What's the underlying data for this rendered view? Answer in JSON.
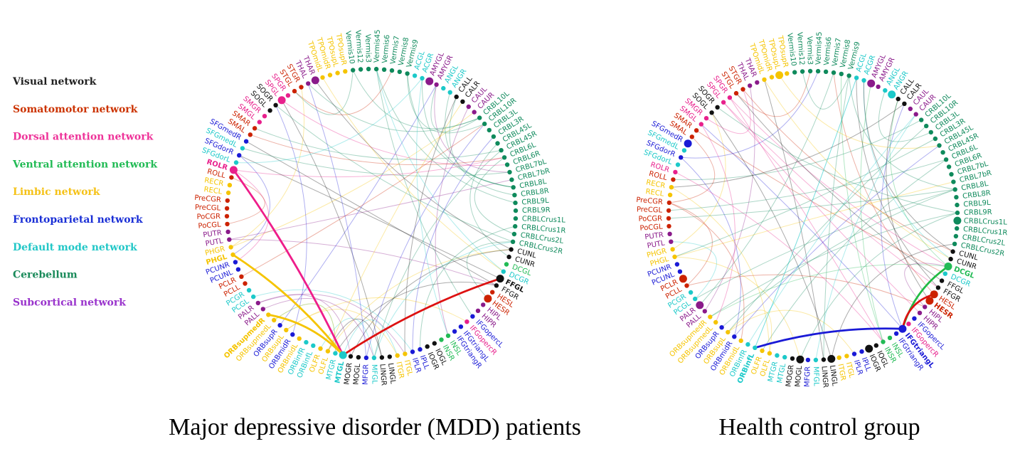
{
  "legend": [
    {
      "label": "Visual network",
      "color": "#222222"
    },
    {
      "label": "Somatomotor network",
      "color": "#cc3300"
    },
    {
      "label": "Dorsal attention network",
      "color": "#ee3399"
    },
    {
      "label": "Ventral attention network",
      "color": "#22bb55"
    },
    {
      "label": "Limbic network",
      "color": "#f5c218"
    },
    {
      "label": "Frontoparietal network",
      "color": "#1a2fd6"
    },
    {
      "label": "Default mode network",
      "color": "#22c7c7"
    },
    {
      "label": "Cerebellum",
      "color": "#1a8a5a"
    },
    {
      "label": "Subcortical network",
      "color": "#9933cc"
    }
  ],
  "network_colors": {
    "VIS": "#111111",
    "SMN": "#cc2200",
    "DAN": "#e8208c",
    "VAN": "#22bb55",
    "LIM": "#f5c400",
    "FPN": "#1a1ad6",
    "DMN": "#1cc9c9",
    "CER": "#0f8a5c",
    "SUB": "#8a1a8a"
  },
  "regions": [
    {
      "label": "ACGR",
      "net": "DMN"
    },
    {
      "label": "AMYGL",
      "net": "SUB"
    },
    {
      "label": "AMYGR",
      "net": "SUB"
    },
    {
      "label": "ANGL",
      "net": "DMN"
    },
    {
      "label": "ANGR",
      "net": "DMN"
    },
    {
      "label": "CALL",
      "net": "VIS"
    },
    {
      "label": "CALR",
      "net": "VIS"
    },
    {
      "label": "CAUL",
      "net": "SUB"
    },
    {
      "label": "CAUR",
      "net": "SUB"
    },
    {
      "label": "CRBL10L",
      "net": "CER"
    },
    {
      "label": "CRBL10R",
      "net": "CER"
    },
    {
      "label": "CRBL3L",
      "net": "CER"
    },
    {
      "label": "CRBL3R",
      "net": "CER"
    },
    {
      "label": "CRBL45L",
      "net": "CER"
    },
    {
      "label": "CRBL45R",
      "net": "CER"
    },
    {
      "label": "CRBL6L",
      "net": "CER"
    },
    {
      "label": "CRBL6R",
      "net": "CER"
    },
    {
      "label": "CRBL7bL",
      "net": "CER"
    },
    {
      "label": "CRBL7bR",
      "net": "CER"
    },
    {
      "label": "CRBL8L",
      "net": "CER"
    },
    {
      "label": "CRBL8R",
      "net": "CER"
    },
    {
      "label": "CRBL9L",
      "net": "CER"
    },
    {
      "label": "CRBL9R",
      "net": "CER"
    },
    {
      "label": "CRBLCrus1L",
      "net": "CER"
    },
    {
      "label": "CRBLCrus1R",
      "net": "CER"
    },
    {
      "label": "CRBLCrus2L",
      "net": "CER"
    },
    {
      "label": "CRBLCrus2R",
      "net": "CER"
    },
    {
      "label": "CUNL",
      "net": "VIS"
    },
    {
      "label": "CUNR",
      "net": "VIS"
    },
    {
      "label": "DCGL",
      "net": "VAN"
    },
    {
      "label": "DCGR",
      "net": "DMN"
    },
    {
      "label": "FFGL",
      "net": "VIS"
    },
    {
      "label": "FFGR",
      "net": "VIS"
    },
    {
      "label": "HESL",
      "net": "SMN"
    },
    {
      "label": "HESR",
      "net": "SMN"
    },
    {
      "label": "HIPL",
      "net": "SUB"
    },
    {
      "label": "HIPR",
      "net": "SUB"
    },
    {
      "label": "IFGopercL",
      "net": "FPN"
    },
    {
      "label": "IFGopercR",
      "net": "DAN"
    },
    {
      "label": "IFGtriangL",
      "net": "FPN"
    },
    {
      "label": "IFGtriangR",
      "net": "FPN"
    },
    {
      "label": "INSL",
      "net": "VAN"
    },
    {
      "label": "INSR",
      "net": "VAN"
    },
    {
      "label": "IOGL",
      "net": "VIS"
    },
    {
      "label": "IOGR",
      "net": "VIS"
    },
    {
      "label": "IPLL",
      "net": "FPN"
    },
    {
      "label": "IPLR",
      "net": "FPN"
    },
    {
      "label": "ITGL",
      "net": "LIM"
    },
    {
      "label": "ITGR",
      "net": "LIM"
    },
    {
      "label": "LINGL",
      "net": "VIS"
    },
    {
      "label": "LINGR",
      "net": "VIS"
    },
    {
      "label": "MFGL",
      "net": "DMN"
    },
    {
      "label": "MFGR",
      "net": "FPN"
    },
    {
      "label": "MOGL",
      "net": "VIS"
    },
    {
      "label": "MOGR",
      "net": "VIS"
    },
    {
      "label": "MTGL",
      "net": "DMN"
    },
    {
      "label": "MTGR",
      "net": "DMN"
    },
    {
      "label": "OLFL",
      "net": "LIM"
    },
    {
      "label": "OLFR",
      "net": "LIM"
    },
    {
      "label": "ORBinfL",
      "net": "DMN"
    },
    {
      "label": "ORBinfR",
      "net": "DMN"
    },
    {
      "label": "ORBmidL",
      "net": "LIM"
    },
    {
      "label": "ORBmidR",
      "net": "FPN"
    },
    {
      "label": "ORBsupL",
      "net": "LIM"
    },
    {
      "label": "ORBsupR",
      "net": "FPN"
    },
    {
      "label": "ORBsupmedL",
      "net": "LIM"
    },
    {
      "label": "ORBsupmedR",
      "net": "LIM"
    },
    {
      "label": "PALL",
      "net": "SUB"
    },
    {
      "label": "PALR",
      "net": "SUB"
    },
    {
      "label": "PCGL",
      "net": "DMN"
    },
    {
      "label": "PCGR",
      "net": "DMN"
    },
    {
      "label": "PCLL",
      "net": "SMN"
    },
    {
      "label": "PCLR",
      "net": "SMN"
    },
    {
      "label": "PCUNL",
      "net": "FPN"
    },
    {
      "label": "PCUNR",
      "net": "FPN"
    },
    {
      "label": "PHGL",
      "net": "LIM"
    },
    {
      "label": "PHGR",
      "net": "LIM"
    },
    {
      "label": "PUTL",
      "net": "SUB"
    },
    {
      "label": "PUTR",
      "net": "SUB"
    },
    {
      "label": "PoCGL",
      "net": "SMN"
    },
    {
      "label": "PoCGR",
      "net": "SMN"
    },
    {
      "label": "PreCGL",
      "net": "SMN"
    },
    {
      "label": "PreCGR",
      "net": "SMN"
    },
    {
      "label": "RECL",
      "net": "LIM"
    },
    {
      "label": "RECR",
      "net": "LIM"
    },
    {
      "label": "ROLL",
      "net": "SMN"
    },
    {
      "label": "ROLR",
      "net": "DAN"
    },
    {
      "label": "SFGdorL",
      "net": "DMN"
    },
    {
      "label": "SFGdorR",
      "net": "FPN"
    },
    {
      "label": "SFGmedL",
      "net": "DMN"
    },
    {
      "label": "SFGmedR",
      "net": "FPN"
    },
    {
      "label": "SMAL",
      "net": "SMN"
    },
    {
      "label": "SMAR",
      "net": "SMN"
    },
    {
      "label": "SMGL",
      "net": "DAN"
    },
    {
      "label": "SMGR",
      "net": "DAN"
    },
    {
      "label": "SOGL",
      "net": "VIS"
    },
    {
      "label": "SOGR",
      "net": "VIS"
    },
    {
      "label": "SPGL",
      "net": "DAN"
    },
    {
      "label": "SPGR",
      "net": "DAN"
    },
    {
      "label": "STGL",
      "net": "SMN"
    },
    {
      "label": "STGR",
      "net": "SMN"
    },
    {
      "label": "THAL",
      "net": "SUB"
    },
    {
      "label": "THAR",
      "net": "SUB"
    },
    {
      "label": "TPOmidL",
      "net": "LIM"
    },
    {
      "label": "TPOmidR",
      "net": "LIM"
    },
    {
      "label": "TPOsupL",
      "net": "LIM"
    },
    {
      "label": "TPOsupR",
      "net": "LIM"
    },
    {
      "label": "Vermis10",
      "net": "CER"
    },
    {
      "label": "Vermis12",
      "net": "CER"
    },
    {
      "label": "Vermis3",
      "net": "CER"
    },
    {
      "label": "Vermis45",
      "net": "CER"
    },
    {
      "label": "Vermis6",
      "net": "CER"
    },
    {
      "label": "Vermis7",
      "net": "CER"
    },
    {
      "label": "Vermis8",
      "net": "CER"
    },
    {
      "label": "Vermis9",
      "net": "CER"
    },
    {
      "label": "ACGL",
      "net": "DMN"
    }
  ],
  "panels": [
    {
      "title": "Major depressive disorder (MDD) patients",
      "highlight": [
        "ROLR",
        "FFGL",
        "MTGL",
        "ORBsupmedR",
        "PHGL"
      ],
      "big_nodes": [
        "AMYGL",
        "ROLR",
        "FFGL",
        "HESR",
        "MTGL",
        "THAR",
        "SPGL"
      ],
      "strong_edges": [
        {
          "from": "ROLR",
          "to": "MTGL",
          "color": "#ee1d8a"
        },
        {
          "from": "FFGL",
          "to": "MTGL",
          "color": "#dd1111"
        },
        {
          "from": "PHGL",
          "to": "MTGL",
          "color": "#f5c400"
        },
        {
          "from": "ORBsupmedR",
          "to": "MTGL",
          "color": "#f5c400"
        }
      ]
    },
    {
      "title": "Health control group",
      "highlight": [
        "DCGL",
        "HESR",
        "IFGtriangL",
        "ORBinfL"
      ],
      "big_nodes": [
        "DCGL",
        "HESL",
        "HESR",
        "IFGtriangL",
        "AMYGL",
        "ANGR",
        "SFGmedR",
        "PCLR",
        "CRBLCrus1L",
        "TPOsupL",
        "MOGL",
        "LINGL",
        "IOGR",
        "PALR"
      ],
      "strong_edges": [
        {
          "from": "DCGL",
          "to": "IFGtriangL",
          "color": "#22bb44"
        },
        {
          "from": "HESL",
          "to": "IFGtriangL",
          "color": "#dd1111"
        },
        {
          "from": "ORBinfL",
          "to": "IFGtriangL",
          "color": "#1a1ad6"
        }
      ]
    }
  ]
}
